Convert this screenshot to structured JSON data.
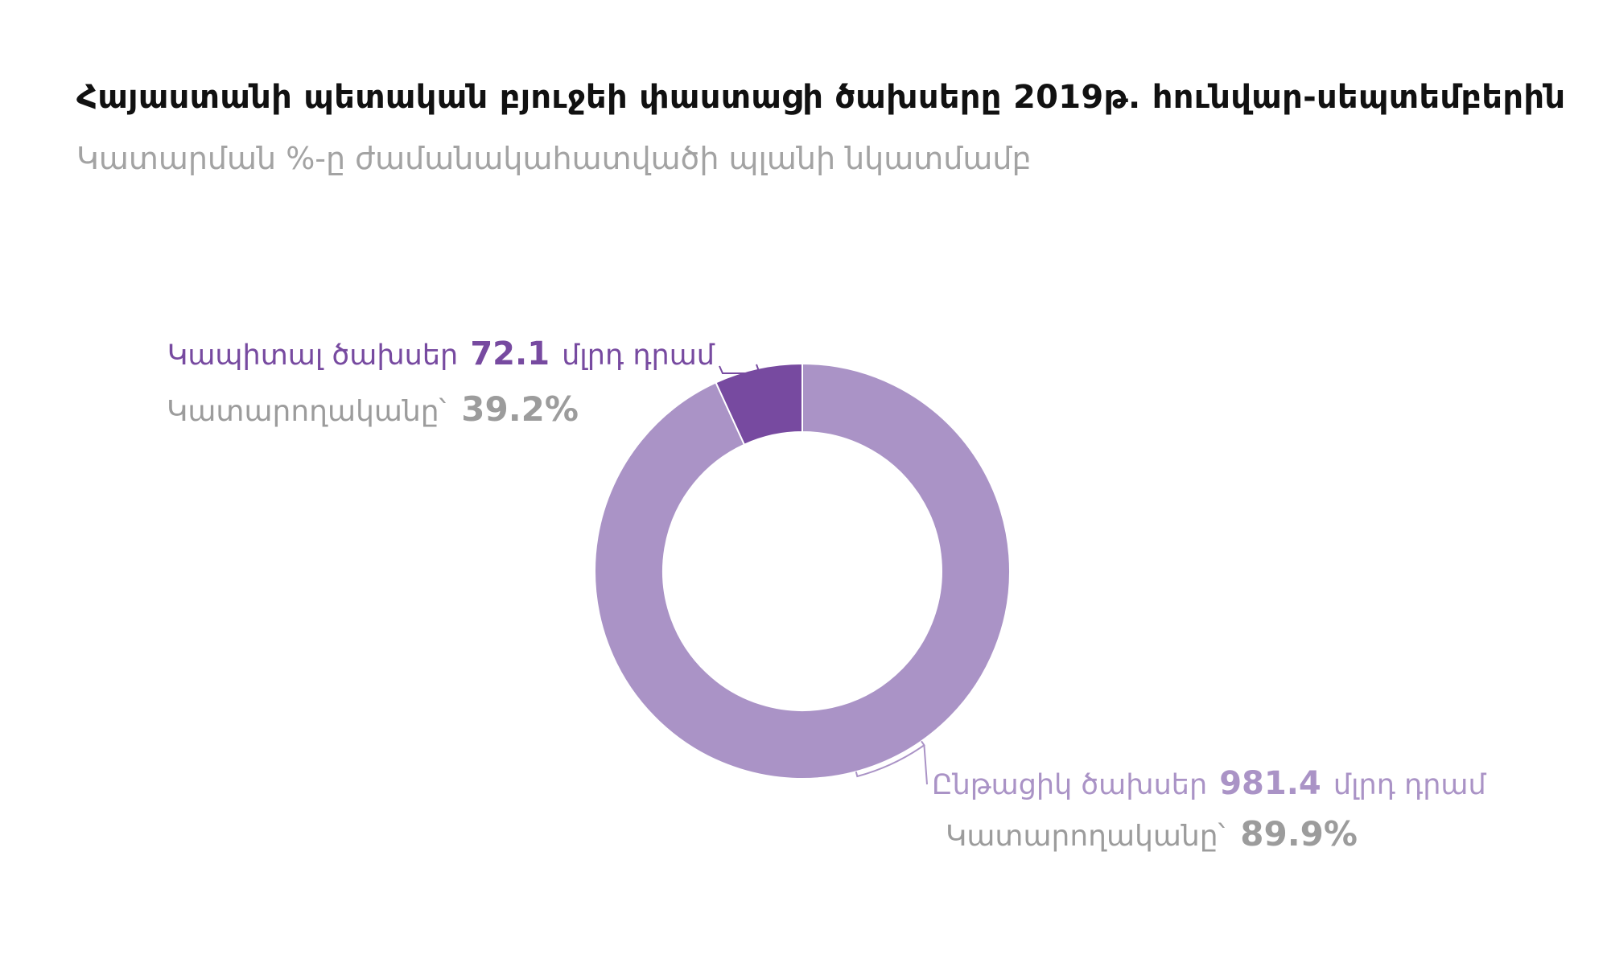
{
  "title": "Հայաստանի պետական բյուջեի  փաստացի ծախսերը 2019թ. հունվար-սեպտեմբերին",
  "subtitle": "Կատարման %-ը ժամանակահատվածի պլանի  նկատմամբ",
  "colors": {
    "capital": "#774aa0",
    "current": "#aa93c6",
    "performance": "#9c9c9c"
  },
  "chart_data": {
    "type": "pie",
    "variant": "donut",
    "unit": "մլրդ դրամ",
    "performance_label": "Կատարողականը՝",
    "slices": [
      {
        "name": "Կապիտալ ծախսեր",
        "value": 72.1,
        "value_text": "72.1",
        "performance_pct": 39.2,
        "performance_text": "39.2%",
        "color": "#774aa0"
      },
      {
        "name": "Ընթացիկ ծախսեր",
        "value": 981.4,
        "value_text": "981.4",
        "performance_pct": 89.9,
        "performance_text": "89.9%",
        "color": "#aa93c6"
      }
    ]
  }
}
